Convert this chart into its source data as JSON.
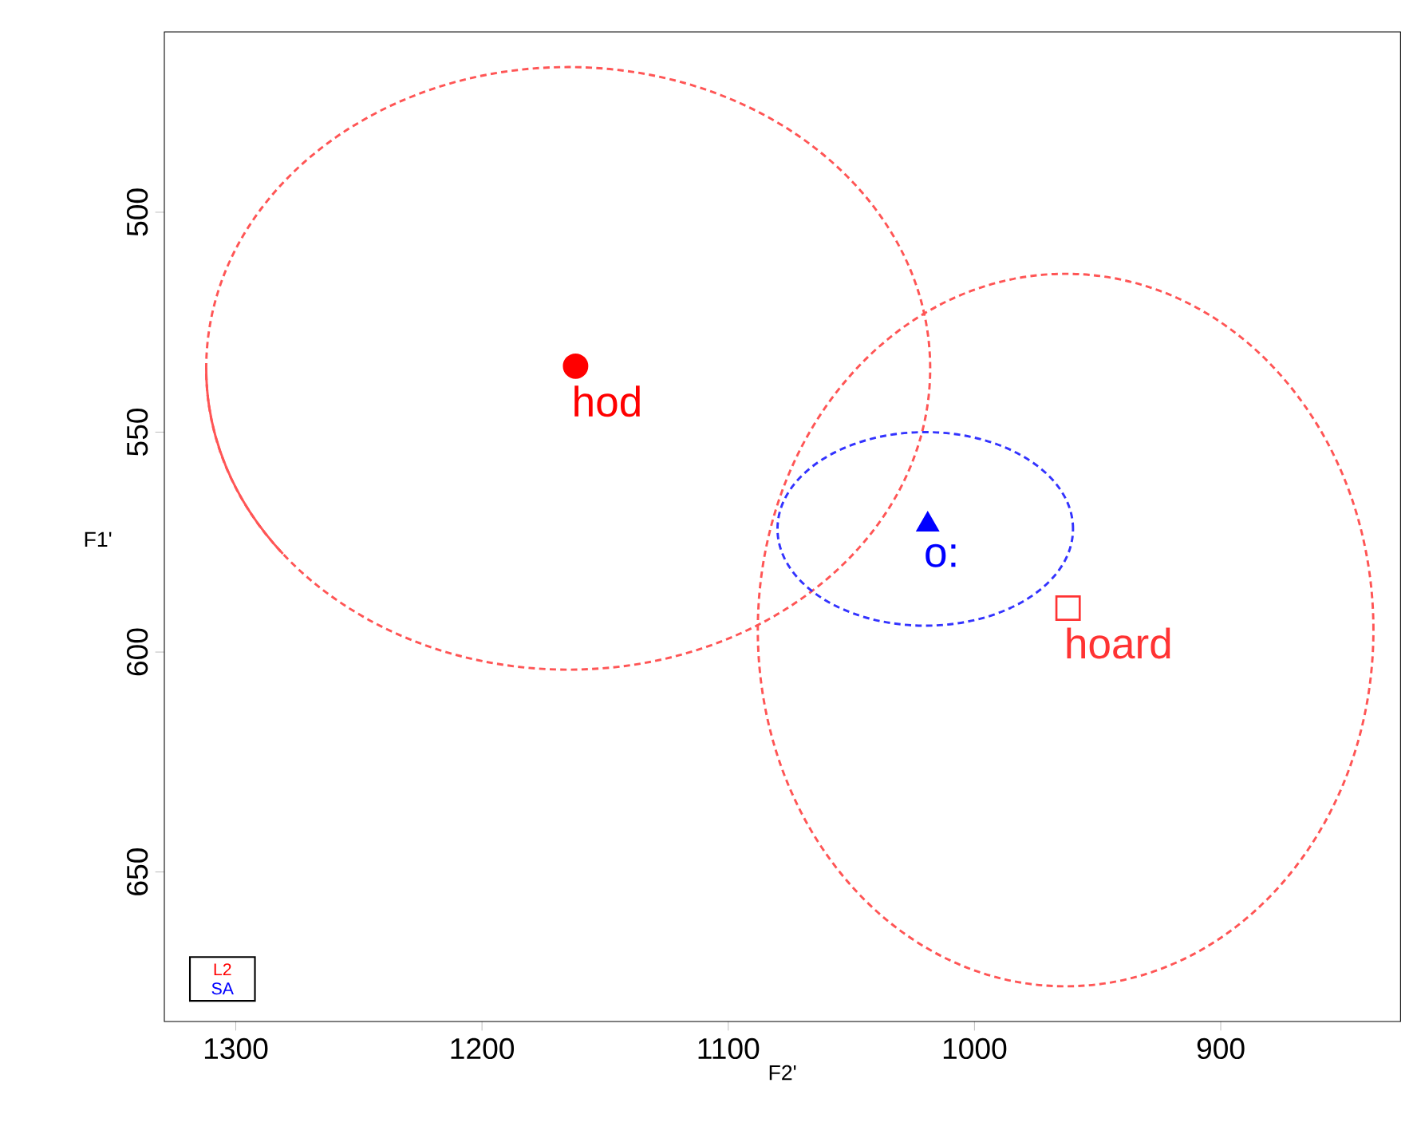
{
  "chart_data": {
    "type": "scatter",
    "xlabel": "F2'",
    "ylabel": "F1'",
    "xlim": [
      1329,
      827
    ],
    "ylim": [
      684,
      459
    ],
    "xticks": [
      1300,
      1200,
      1100,
      1000,
      900
    ],
    "yticks": [
      500,
      550,
      600,
      650
    ],
    "grid": false,
    "legend": "bottom left",
    "series": [
      {
        "name": "L2",
        "color": "#ff0000",
        "marker": "circle",
        "x": [
          1162
        ],
        "values": [
          535
        ]
      },
      {
        "name": "SA",
        "color": "#0000ff",
        "marker": "triangle",
        "x": [
          1019
        ],
        "values": [
          571
        ]
      },
      {
        "color": "#ff3333",
        "marker": "square",
        "x": [
          962
        ],
        "values": [
          590
        ]
      }
    ],
    "annotations": [
      {
        "text": "hod",
        "x": 1162,
        "y": 535
      },
      {
        "text": "o:",
        "x": 1019,
        "y": 571
      },
      {
        "text": "hoard",
        "x": 962,
        "y": 590
      }
    ]
  }
}
